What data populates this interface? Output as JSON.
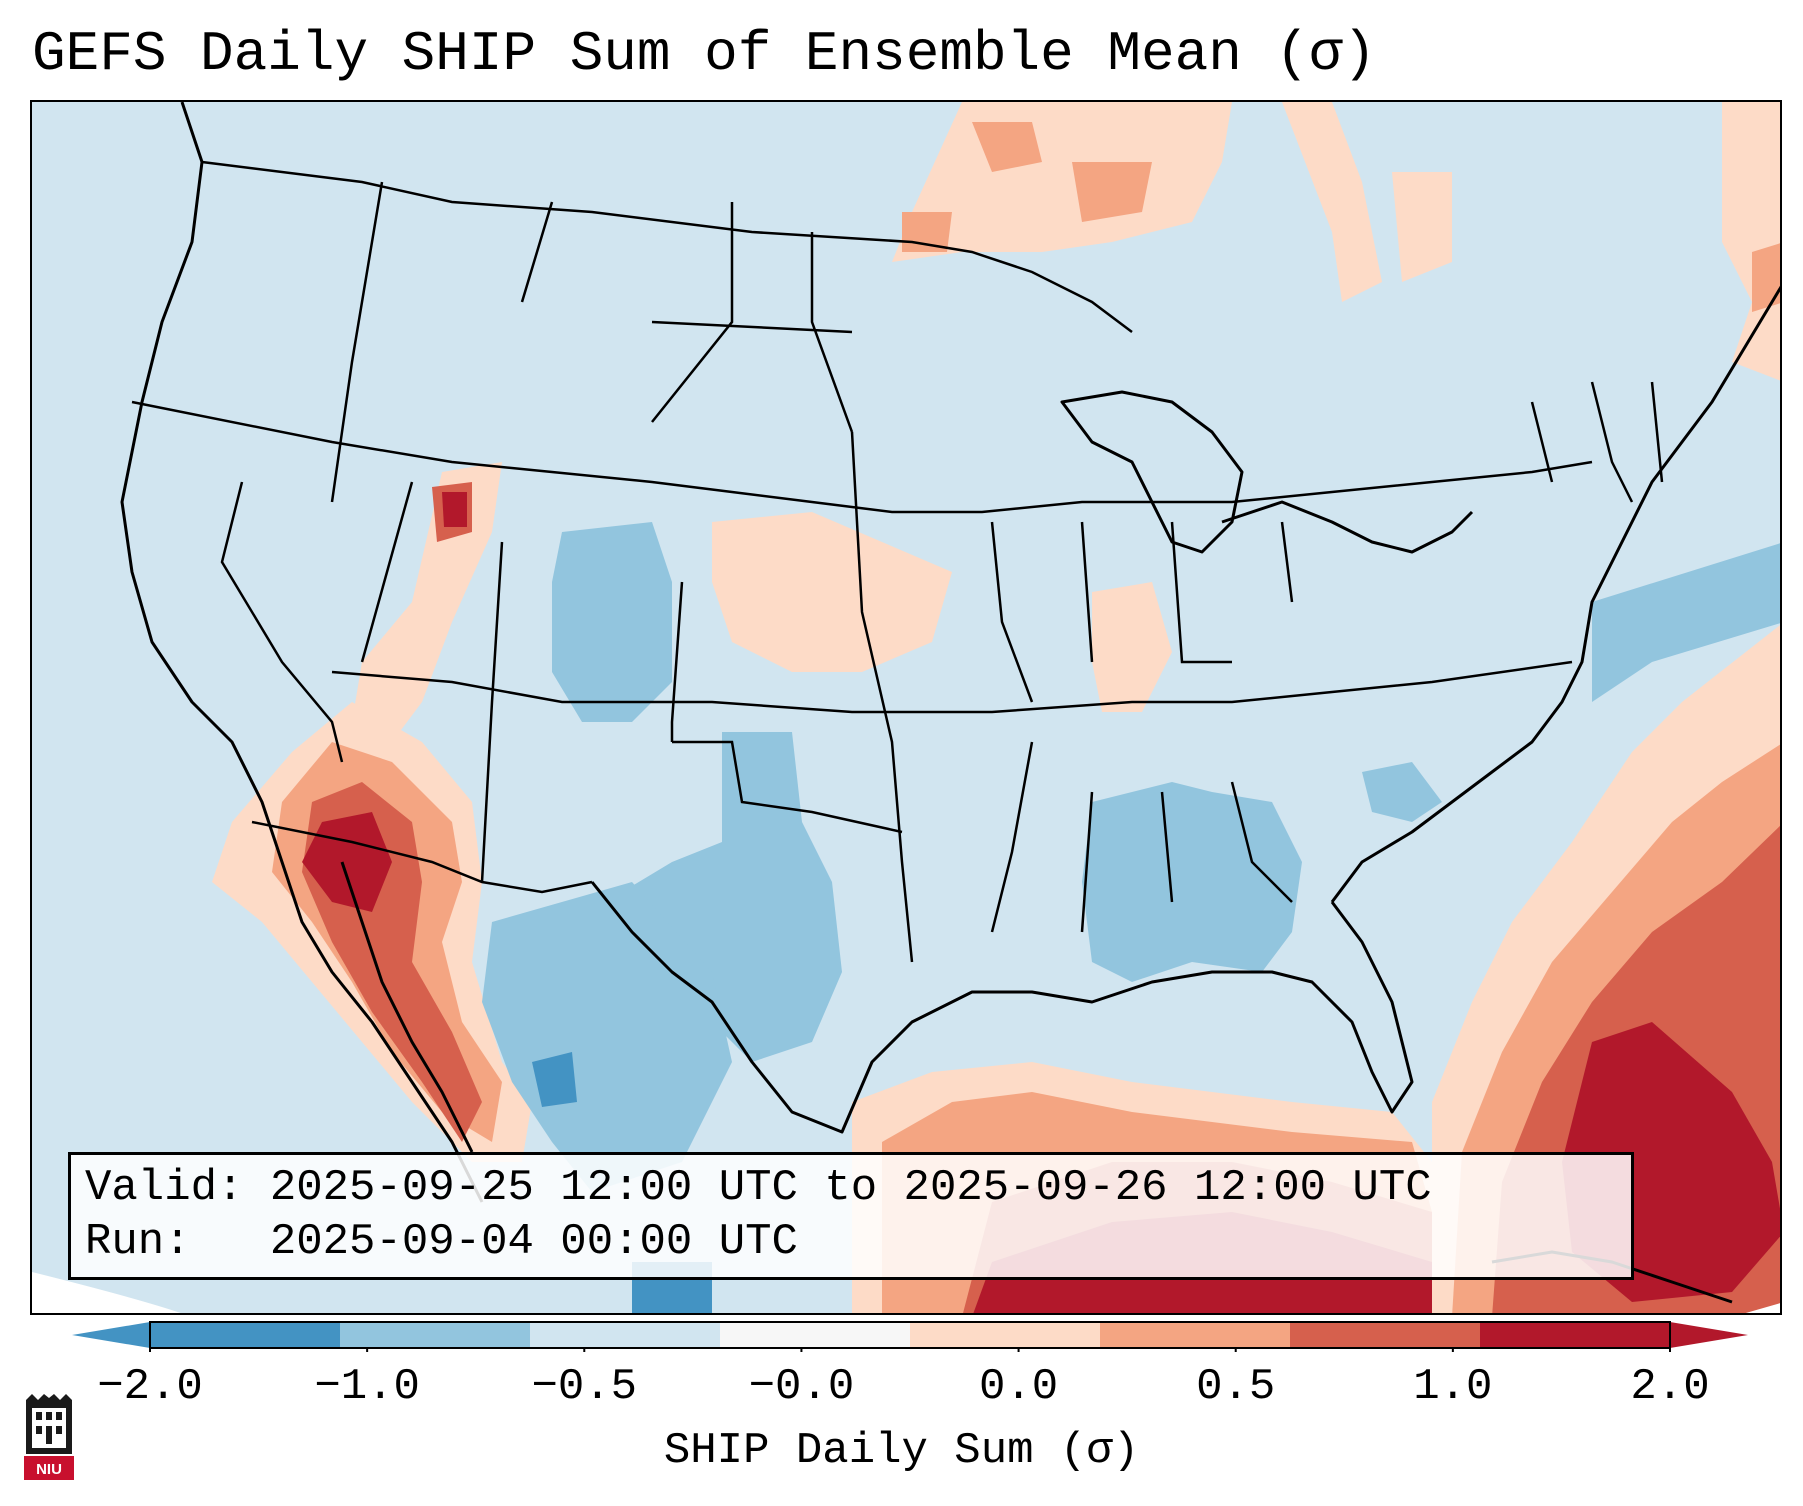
{
  "title": "GEFS Daily SHIP Sum of Ensemble Mean (σ)",
  "info": {
    "valid_label": "Valid:",
    "valid_value": "2025-09-25 12:00 UTC to 2025-09-26 12:00 UTC",
    "run_label": "Run:",
    "run_value": "2025-09-04 00:00 UTC"
  },
  "colorbar": {
    "label": "SHIP Daily Sum (σ)",
    "ticks": [
      "−2.0",
      "−1.0",
      "−0.5",
      "−0.0",
      "0.0",
      "0.5",
      "1.0",
      "2.0"
    ],
    "colors": [
      "#4393c3",
      "#92c5de",
      "#d1e5f0",
      "#f7f7f7",
      "#fddbc7",
      "#f4a582",
      "#d6604d",
      "#b2182b"
    ],
    "under_color": "#4393c3",
    "over_color": "#b2182b"
  },
  "map": {
    "background_color": "#d1e5f0",
    "features": [
      "state-borders",
      "coastlines"
    ]
  },
  "logo": {
    "text": "NIU"
  }
}
